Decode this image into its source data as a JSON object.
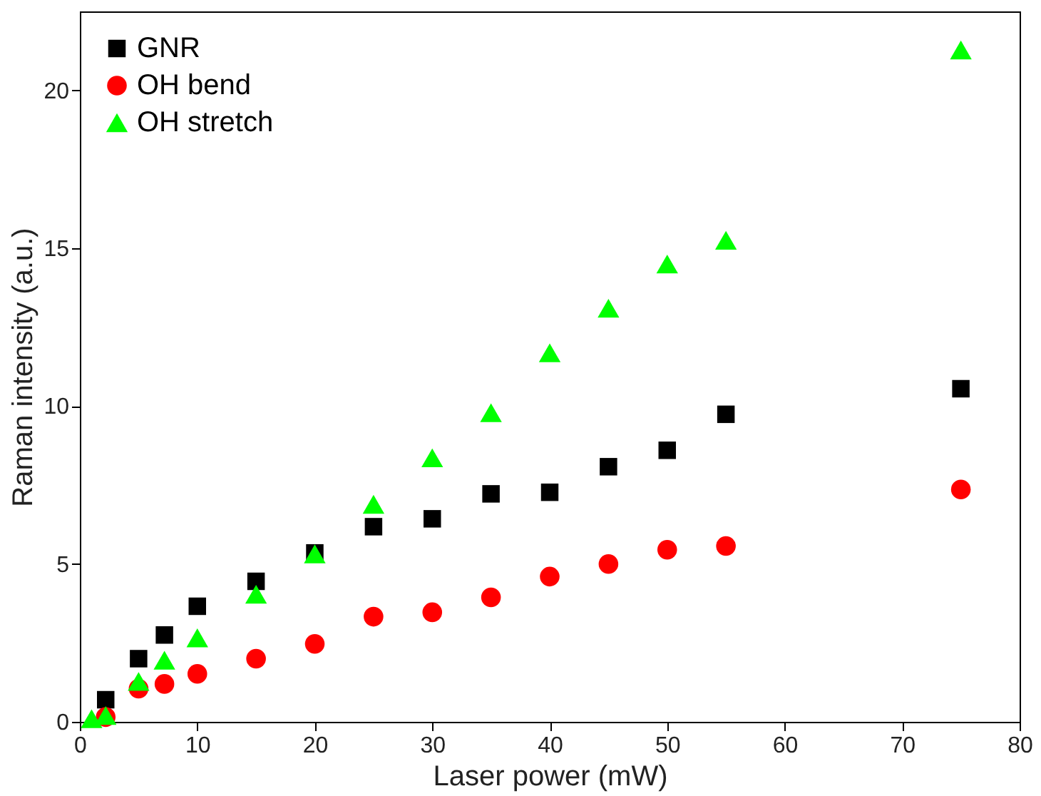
{
  "chart_data": {
    "type": "scatter",
    "xlabel": "Laser power (mW)",
    "ylabel": "Raman intensity (a.u.)",
    "xlim": [
      0,
      80
    ],
    "ylim": [
      0,
      22.5
    ],
    "xticks": [
      0,
      10,
      20,
      30,
      40,
      50,
      60,
      70,
      80
    ],
    "yticks": [
      0,
      5,
      10,
      15,
      20
    ],
    "grid": false,
    "legend": "top left",
    "series": [
      {
        "name": "GNR",
        "color": "#000000",
        "marker": "square",
        "x": [
          2.2,
          5,
          7.2,
          10,
          15,
          20,
          25,
          30,
          35,
          40,
          45,
          50,
          55,
          75
        ],
        "values": [
          0.7,
          2.0,
          2.75,
          3.66,
          4.45,
          5.35,
          6.18,
          6.43,
          7.22,
          7.27,
          8.08,
          8.6,
          9.74,
          10.55
        ]
      },
      {
        "name": "OH bend",
        "color": "#ff0000",
        "marker": "circle",
        "x": [
          2.2,
          5,
          7.2,
          10,
          15,
          20,
          25,
          30,
          35,
          40,
          45,
          50,
          55,
          75
        ],
        "values": [
          0.15,
          1.05,
          1.2,
          1.52,
          2.0,
          2.47,
          3.33,
          3.47,
          3.94,
          4.6,
          5.0,
          5.45,
          5.57,
          7.36
        ]
      },
      {
        "name": "OH stretch",
        "color": "#00ff00",
        "marker": "triangle",
        "x": [
          1,
          2.2,
          5,
          7.2,
          10,
          15,
          20,
          25,
          30,
          35,
          40,
          45,
          50,
          55,
          75
        ],
        "values": [
          0.1,
          0.2,
          1.28,
          1.95,
          2.66,
          4.04,
          5.32,
          6.89,
          8.36,
          9.79,
          11.69,
          13.1,
          14.5,
          15.25,
          21.28
        ]
      }
    ]
  }
}
